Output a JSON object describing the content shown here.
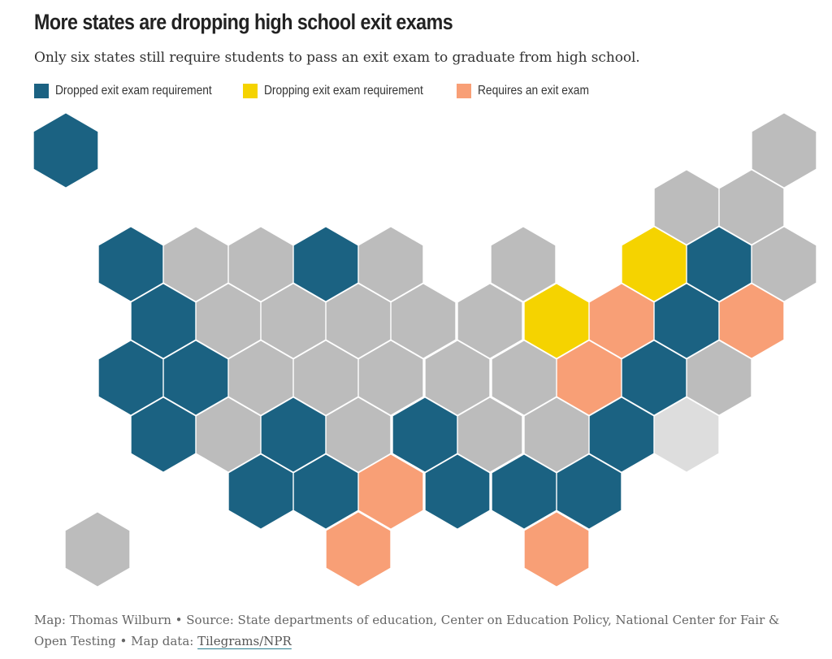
{
  "title": "More states are dropping high school exit exams",
  "subtitle": "Only six states still require students to pass an exit exam to graduate from high school.",
  "colors": {
    "dropped": "#1b6282",
    "dropping": "#f5d300",
    "requires": "#f89f76",
    "other": "#bcbcbc",
    "nodata": "#dddddd"
  },
  "legend": [
    {
      "key": "dropped",
      "label": "Dropped exit exam requirement"
    },
    {
      "key": "dropping",
      "label": "Dropping exit exam requirement"
    },
    {
      "key": "requires",
      "label": "Requires an exit exam"
    }
  ],
  "map": {
    "tiles": [
      {
        "state": "AK",
        "status": "dropped"
      },
      {
        "state": "HI",
        "status": "other"
      },
      {
        "state": "ME",
        "status": "other"
      },
      {
        "state": "VT",
        "status": "other"
      },
      {
        "state": "NH",
        "status": "other"
      },
      {
        "state": "WA",
        "status": "dropped"
      },
      {
        "state": "ID",
        "status": "other"
      },
      {
        "state": "MT",
        "status": "other"
      },
      {
        "state": "ND",
        "status": "dropped"
      },
      {
        "state": "MN",
        "status": "other"
      },
      {
        "state": "MI",
        "status": "other"
      },
      {
        "state": "NY",
        "status": "dropping"
      },
      {
        "state": "MA",
        "status": "dropped"
      },
      {
        "state": "RI",
        "status": "other"
      },
      {
        "state": "OR",
        "status": "dropped"
      },
      {
        "state": "UT",
        "status": "other"
      },
      {
        "state": "WY",
        "status": "other"
      },
      {
        "state": "SD",
        "status": "other"
      },
      {
        "state": "IA",
        "status": "other"
      },
      {
        "state": "WI",
        "status": "other"
      },
      {
        "state": "OH",
        "status": "dropping"
      },
      {
        "state": "PA",
        "status": "requires"
      },
      {
        "state": "NJ",
        "status": "dropped"
      },
      {
        "state": "CT",
        "status": "requires"
      },
      {
        "state": "CA",
        "status": "dropped"
      },
      {
        "state": "NV",
        "status": "dropped"
      },
      {
        "state": "CO",
        "status": "other"
      },
      {
        "state": "NE",
        "status": "other"
      },
      {
        "state": "MO",
        "status": "other"
      },
      {
        "state": "IL",
        "status": "other"
      },
      {
        "state": "IN",
        "status": "other"
      },
      {
        "state": "VA",
        "status": "requires"
      },
      {
        "state": "MD",
        "status": "dropped"
      },
      {
        "state": "DE",
        "status": "other"
      },
      {
        "state": "AZ",
        "status": "dropped"
      },
      {
        "state": "NM",
        "status": "other"
      },
      {
        "state": "KS",
        "status": "dropped"
      },
      {
        "state": "AR",
        "status": "other"
      },
      {
        "state": "KY",
        "status": "dropped"
      },
      {
        "state": "WV",
        "status": "other"
      },
      {
        "state": "TN",
        "status": "other"
      },
      {
        "state": "NC",
        "status": "dropped"
      },
      {
        "state": "DC",
        "status": "nodata"
      },
      {
        "state": "OK",
        "status": "dropped"
      },
      {
        "state": "LA",
        "status": "dropped"
      },
      {
        "state": "MS",
        "status": "requires"
      },
      {
        "state": "AL",
        "status": "dropped"
      },
      {
        "state": "GA",
        "status": "dropped"
      },
      {
        "state": "SC",
        "status": "dropped"
      },
      {
        "state": "TX",
        "status": "requires"
      },
      {
        "state": "FL",
        "status": "requires"
      }
    ]
  },
  "credit": {
    "prefix": "Map: Thomas Wilburn • Source: State departments of education, Center on Education Policy, National Center for Fair & Open Testing • Map data: ",
    "link": "Tilegrams/NPR"
  }
}
